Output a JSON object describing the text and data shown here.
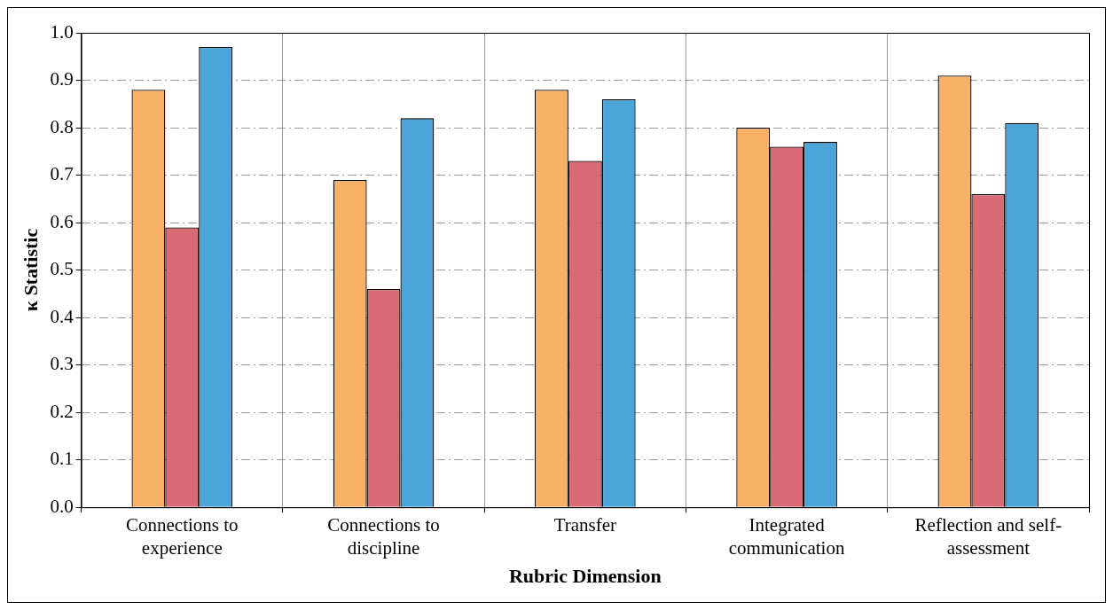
{
  "chart_data": {
    "type": "bar",
    "xlabel": "Rubric Dimension",
    "ylabel": "κ Statistic",
    "categories": [
      "Connections to experience",
      "Connections to discipline",
      "Transfer",
      "Integrated communication",
      "Reflection and self-assessment"
    ],
    "series": [
      {
        "color": "#f9b168",
        "values": [
          0.88,
          0.69,
          0.88,
          0.8,
          0.91
        ]
      },
      {
        "color": "#d96b74",
        "values": [
          0.59,
          0.46,
          0.73,
          0.76,
          0.66
        ]
      },
      {
        "color": "#4ba5d9",
        "values": [
          0.97,
          0.82,
          0.86,
          0.77,
          0.81
        ]
      }
    ],
    "ylim": [
      0,
      1
    ],
    "yticks": [
      {
        "value": 0,
        "label": "0.0"
      },
      0.1,
      0.2,
      0.3,
      0.4,
      0.5,
      0.6,
      0.7,
      0.8,
      0.9,
      {
        "value": 1,
        "label": "1.0"
      }
    ],
    "grid": true,
    "legend": false
  }
}
